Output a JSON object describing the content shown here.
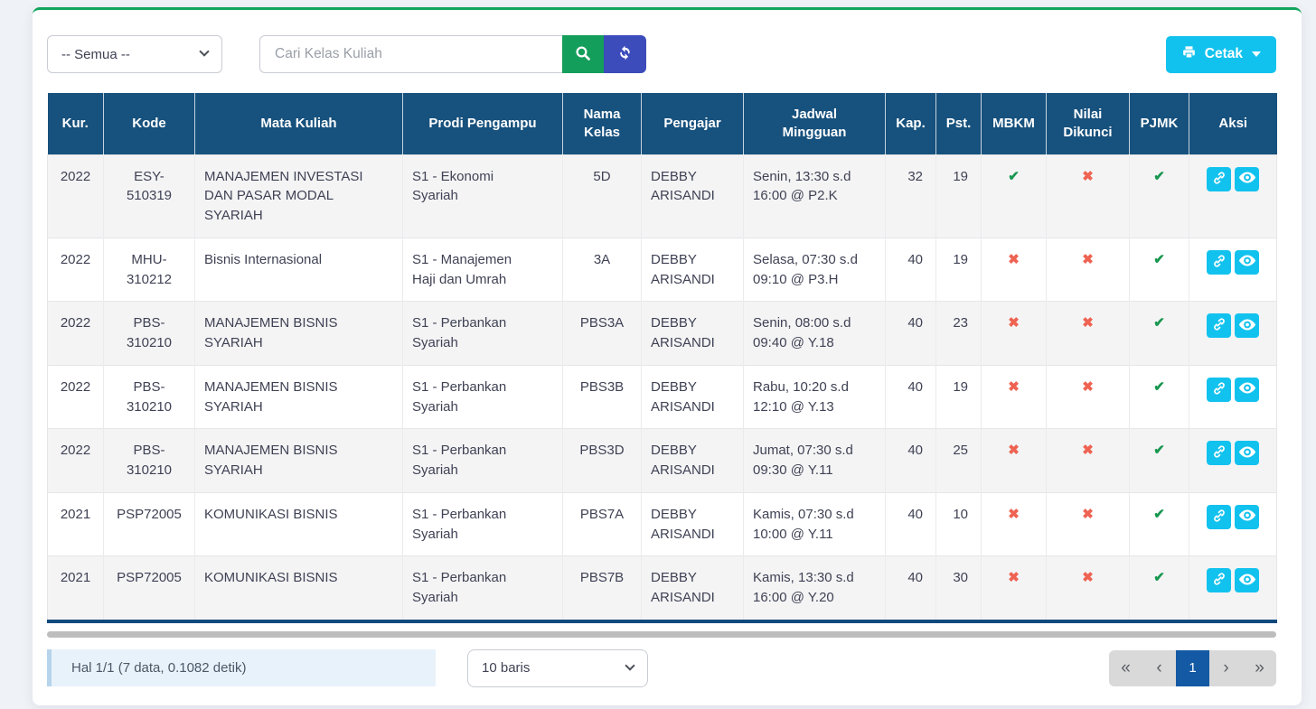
{
  "toolbar": {
    "filter_select_value": "-- Semua --",
    "search_placeholder": "Cari Kelas Kuliah",
    "print_label": "Cetak"
  },
  "table": {
    "columns": [
      "Kur.",
      "Kode",
      "Mata Kuliah",
      "Prodi Pengampu",
      "Nama Kelas",
      "Pengajar",
      "Jadwal Mingguan",
      "Kap.",
      "Pst.",
      "MBKM",
      "Nilai Dikunci",
      "PJMK",
      "Aksi"
    ],
    "rows": [
      {
        "kur": "2022",
        "kode": "ESY-510319",
        "mata_kuliah": "MANAJEMEN INVESTASI DAN PASAR MODAL SYARIAH",
        "prodi": "S1 - Ekonomi Syariah",
        "nama_kelas": "5D",
        "pengajar": "DEBBY ARISANDI",
        "jadwal": "Senin, 13:30 s.d 16:00 @ P2.K",
        "kap": "32",
        "pst": "19",
        "mbkm": true,
        "nilai_dikunci": false,
        "pjmk": true
      },
      {
        "kur": "2022",
        "kode": "MHU-310212",
        "mata_kuliah": "Bisnis Internasional",
        "prodi": "S1 - Manajemen Haji dan Umrah",
        "nama_kelas": "3A",
        "pengajar": "DEBBY ARISANDI",
        "jadwal": "Selasa, 07:30 s.d 09:10 @ P3.H",
        "kap": "40",
        "pst": "19",
        "mbkm": false,
        "nilai_dikunci": false,
        "pjmk": true
      },
      {
        "kur": "2022",
        "kode": "PBS-310210",
        "mata_kuliah": "MANAJEMEN BISNIS SYARIAH",
        "prodi": "S1 - Perbankan Syariah",
        "nama_kelas": "PBS3A",
        "pengajar": "DEBBY ARISANDI",
        "jadwal": "Senin, 08:00 s.d 09:40 @ Y.18",
        "kap": "40",
        "pst": "23",
        "mbkm": false,
        "nilai_dikunci": false,
        "pjmk": true
      },
      {
        "kur": "2022",
        "kode": "PBS-310210",
        "mata_kuliah": "MANAJEMEN BISNIS SYARIAH",
        "prodi": "S1 - Perbankan Syariah",
        "nama_kelas": "PBS3B",
        "pengajar": "DEBBY ARISANDI",
        "jadwal": "Rabu, 10:20 s.d 12:10 @ Y.13",
        "kap": "40",
        "pst": "19",
        "mbkm": false,
        "nilai_dikunci": false,
        "pjmk": true
      },
      {
        "kur": "2022",
        "kode": "PBS-310210",
        "mata_kuliah": "MANAJEMEN BISNIS SYARIAH",
        "prodi": "S1 - Perbankan Syariah",
        "nama_kelas": "PBS3D",
        "pengajar": "DEBBY ARISANDI",
        "jadwal": "Jumat, 07:30 s.d 09:30 @ Y.11",
        "kap": "40",
        "pst": "25",
        "mbkm": false,
        "nilai_dikunci": false,
        "pjmk": true
      },
      {
        "kur": "2021",
        "kode": "PSP72005",
        "mata_kuliah": "KOMUNIKASI BISNIS",
        "prodi": "S1 - Perbankan Syariah",
        "nama_kelas": "PBS7A",
        "pengajar": "DEBBY ARISANDI",
        "jadwal": "Kamis, 07:30 s.d 10:00 @ Y.11",
        "kap": "40",
        "pst": "10",
        "mbkm": false,
        "nilai_dikunci": false,
        "pjmk": true
      },
      {
        "kur": "2021",
        "kode": "PSP72005",
        "mata_kuliah": "KOMUNIKASI BISNIS",
        "prodi": "S1 - Perbankan Syariah",
        "nama_kelas": "PBS7B",
        "pengajar": "DEBBY ARISANDI",
        "jadwal": "Kamis, 13:30 s.d 16:00 @ Y.20",
        "kap": "40",
        "pst": "30",
        "mbkm": false,
        "nilai_dikunci": false,
        "pjmk": true
      }
    ]
  },
  "icons": {
    "check": "✔",
    "cross": "✖",
    "search": "search-icon",
    "refresh": "refresh-icon",
    "printer": "printer-icon",
    "link": "link-icon",
    "eye": "eye-icon"
  },
  "footer": {
    "info": "Hal 1/1 (7 data, 0.1082 detik)",
    "rows_per_page": "10 baris",
    "pagination": {
      "first": "«",
      "prev": "‹",
      "current": "1",
      "next": "›",
      "last": "»"
    }
  },
  "colors": {
    "card_top_border_green": "#12a45c",
    "table_header_navy": "#17517d",
    "table_bottom_border_navy": "#12497d",
    "search_button_green": "#149e5b",
    "refresh_button_indigo": "#3c4cbb",
    "cyan_accent": "#12c2ee",
    "check_green": "#18964f",
    "cross_red": "#ee6352",
    "active_page_blue": "#1459a4",
    "info_box_bg": "#e8f2fb"
  }
}
